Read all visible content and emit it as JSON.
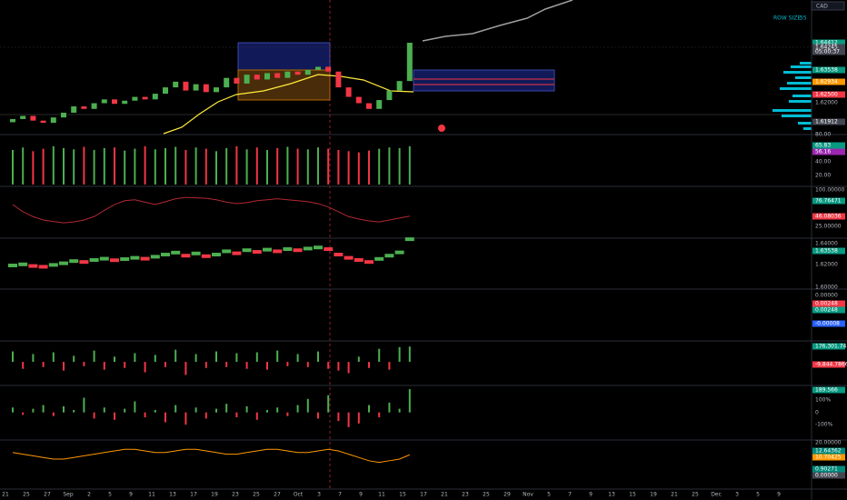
{
  "top_right": {
    "currency": "CAD",
    "row_size_label": "ROW SIZE",
    "row_size": 55
  },
  "price_labels": [
    "1.64412",
    "1.64245",
    "05:00:37",
    "1.63538",
    "1.62934",
    "1.62500",
    "1.62000",
    "1.61912",
    "80.00",
    "65.83",
    "56.16",
    "40.00",
    "20.00",
    "100.00000",
    "76.76471",
    "46.08036",
    "25.00000",
    "1.64000",
    "1.63538",
    "1.62000",
    "1.60000",
    "0.00000",
    "0.00248",
    "0.00248",
    "-0.00008",
    "176,301.74522",
    "-9,844.78668",
    "189.566",
    "100%",
    "0",
    "-100%",
    "20.00000",
    "12.64362",
    "10.70425",
    "0.90271",
    "0.00000"
  ],
  "time_labels": [
    "21",
    "25",
    "27",
    "Sep",
    "2",
    "5",
    "9",
    "11",
    "13",
    "17",
    "19",
    "23",
    "25",
    "27",
    "Oct",
    "3",
    "7",
    "9",
    "11",
    "15",
    "17",
    "21",
    "23",
    "25",
    "29",
    "Nov",
    "5",
    "7",
    "9",
    "13",
    "15",
    "19",
    "21",
    "25",
    "Dec",
    "3",
    "5",
    "9"
  ],
  "chart_data": {
    "type": "candlestick",
    "ylim": [
      1.6151,
      1.6576
    ],
    "up_color": "#4caf50",
    "down_color": "#f23645",
    "open": [
      1.619,
      1.62,
      1.621,
      1.6195,
      1.6188,
      1.6205,
      1.622,
      1.624,
      1.6232,
      1.625,
      1.6262,
      1.6248,
      1.6258,
      1.627,
      1.6262,
      1.628,
      1.63,
      1.6318,
      1.629,
      1.631,
      1.6285,
      1.63,
      1.633,
      1.6312,
      1.634,
      1.6325,
      1.6345,
      1.633,
      1.635,
      1.634,
      1.6355,
      1.6365,
      1.635,
      1.63,
      1.627,
      1.625,
      1.6232,
      1.626,
      1.629,
      1.632
    ],
    "close": [
      1.62,
      1.621,
      1.6195,
      1.6188,
      1.6205,
      1.622,
      1.624,
      1.6232,
      1.625,
      1.6262,
      1.6248,
      1.6258,
      1.627,
      1.6262,
      1.628,
      1.63,
      1.6318,
      1.629,
      1.631,
      1.6285,
      1.63,
      1.633,
      1.6312,
      1.634,
      1.6325,
      1.6345,
      1.633,
      1.635,
      1.634,
      1.6355,
      1.6365,
      1.635,
      1.63,
      1.627,
      1.625,
      1.6232,
      1.626,
      1.629,
      1.632,
      1.6441
    ],
    "close_pane_ylim": [
      1.5983,
      1.6442
    ],
    "panes": [
      {
        "type": "bar",
        "ylim": [
          4,
          82
        ],
        "color_by": "candle",
        "values": [
          60,
          64,
          58,
          62,
          66,
          63,
          61,
          65,
          60,
          63,
          64,
          59,
          62,
          66,
          61,
          63,
          65,
          60,
          64,
          62,
          58,
          63,
          66,
          61,
          64,
          60,
          63,
          65,
          62,
          61,
          64,
          62,
          60,
          58,
          56,
          59,
          62,
          64,
          63,
          66
        ]
      },
      {
        "type": "line",
        "ylim": [
          4,
          104
        ],
        "color": "#b22833",
        "values": [
          70,
          55,
          45,
          38,
          35,
          32,
          34,
          38,
          45,
          58,
          70,
          78,
          80,
          75,
          70,
          76,
          82,
          85,
          84,
          83,
          80,
          75,
          72,
          74,
          78,
          80,
          82,
          80,
          78,
          76,
          72,
          65,
          55,
          45,
          40,
          36,
          34,
          38,
          42,
          46.08036
        ]
      },
      {
        "type": "bar",
        "ylim": [
          -250000,
          220000
        ],
        "color_by": "sign",
        "values": [
          120000,
          -80000,
          90000,
          -60000,
          110000,
          -100000,
          70000,
          -50000,
          130000,
          -90000,
          60000,
          -70000,
          100000,
          -120000,
          80000,
          -60000,
          140000,
          -150000,
          90000,
          -70000,
          120000,
          -60000,
          100000,
          -80000,
          110000,
          -90000,
          130000,
          -50000,
          90000,
          -60000,
          120000,
          -80000,
          -100000,
          -130000,
          60000,
          -70000,
          150000,
          -90000,
          170000,
          176301.74522
        ]
      },
      {
        "type": "bar",
        "ylim": [
          -210,
          205
        ],
        "color_by": "sign",
        "values": [
          40,
          -20,
          30,
          60,
          -30,
          50,
          20,
          120,
          -50,
          40,
          -60,
          30,
          90,
          -40,
          20,
          -80,
          60,
          -100,
          40,
          -50,
          30,
          70,
          -40,
          50,
          -60,
          20,
          40,
          -30,
          60,
          110,
          -50,
          140,
          -70,
          -120,
          -90,
          60,
          -40,
          80,
          30,
          189.566
        ]
      },
      {
        "type": "line",
        "ylim": [
          -7.2,
          20.55
        ],
        "color": "#ff9800",
        "values": [
          14,
          13,
          12,
          11,
          10,
          10,
          11,
          12,
          13,
          14,
          15,
          16,
          16,
          15,
          14,
          14,
          15,
          16,
          16,
          15,
          14,
          13,
          13,
          14,
          15,
          16,
          16,
          15,
          14,
          14,
          15,
          16,
          15,
          13,
          11,
          9,
          8,
          9,
          10,
          12.64362
        ]
      }
    ]
  }
}
